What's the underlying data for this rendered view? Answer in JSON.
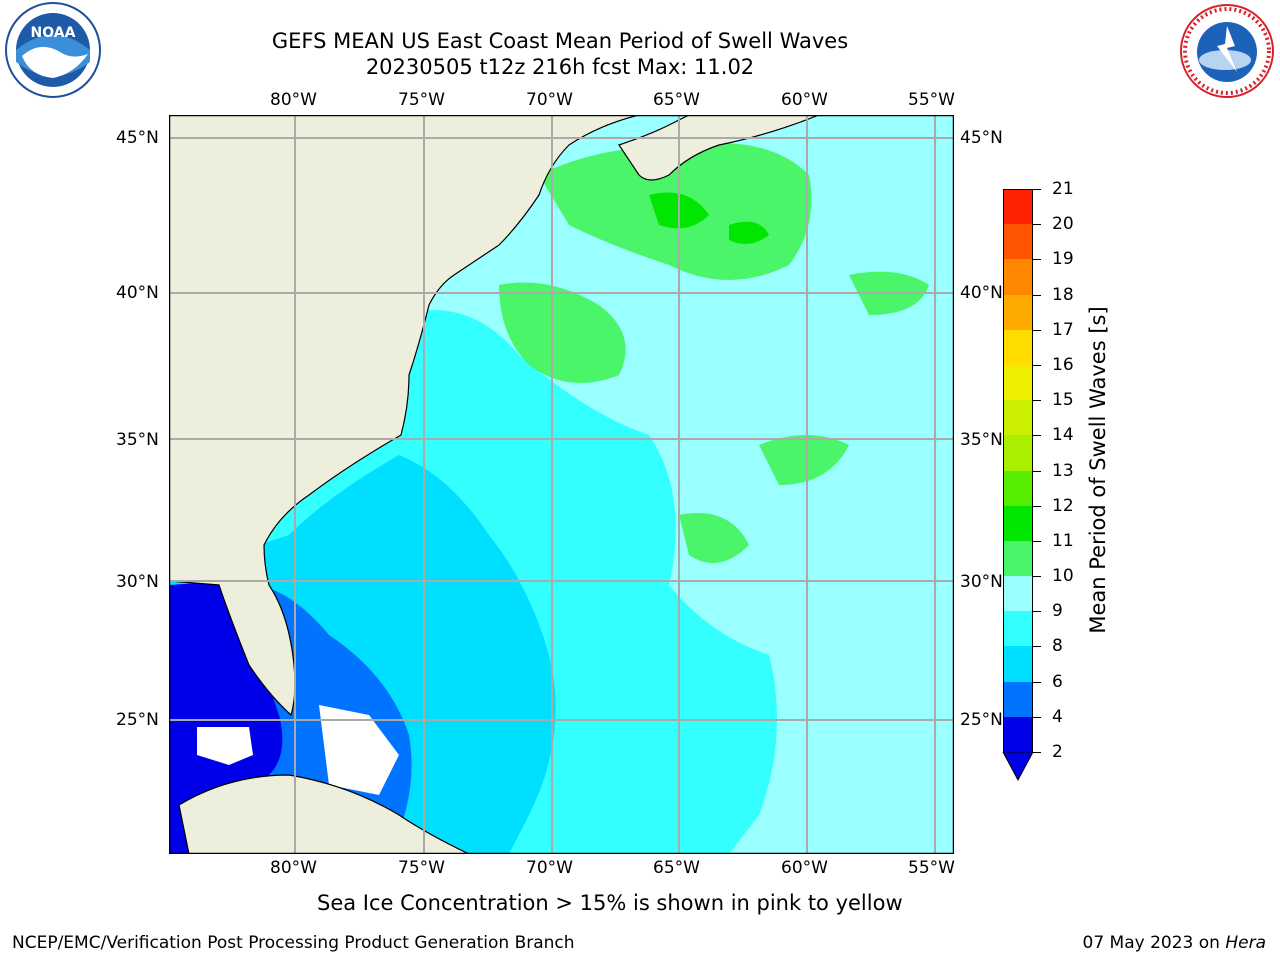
{
  "header": {
    "title_line1": "GEFS MEAN US East Coast Mean Period of Swell Waves",
    "title_line2": "20230505 t12z 216h fcst   Max: 11.02"
  },
  "logos": {
    "left": "NOAA",
    "right": "NATIONAL WEATHER SERVICE"
  },
  "map": {
    "lon_labels": [
      "80°W",
      "75°W",
      "70°W",
      "65°W",
      "60°W",
      "55°W"
    ],
    "lat_labels": [
      "45°N",
      "40°N",
      "35°N",
      "30°N",
      "25°N"
    ],
    "colors": {
      "land": "#eeeedd",
      "grid": "#aaaaaa",
      "missing": "#ffffff"
    }
  },
  "colorbar": {
    "title": "Mean Period of Swell Waves [s]",
    "levels": [
      "2",
      "4",
      "6",
      "8",
      "9",
      "10",
      "11",
      "12",
      "13",
      "14",
      "15",
      "16",
      "17",
      "18",
      "19",
      "20",
      "21"
    ],
    "colors": [
      "#0000e8",
      "#0073ff",
      "#00dfff",
      "#33ffff",
      "#99ffff",
      "#4bf569",
      "#00e600",
      "#55ee00",
      "#aaee00",
      "#ccee00",
      "#eeee00",
      "#ffdd00",
      "#ffaa00",
      "#ff8800",
      "#ff5500",
      "#ff2200",
      "#ff0000"
    ]
  },
  "footer": {
    "note": "Sea Ice Concentration > 15% is shown in pink to yellow",
    "left": "NCEP/EMC/Verification Post Processing Product Generation Branch",
    "right_date": "07 May 2023 on ",
    "right_machine": "Hera"
  }
}
